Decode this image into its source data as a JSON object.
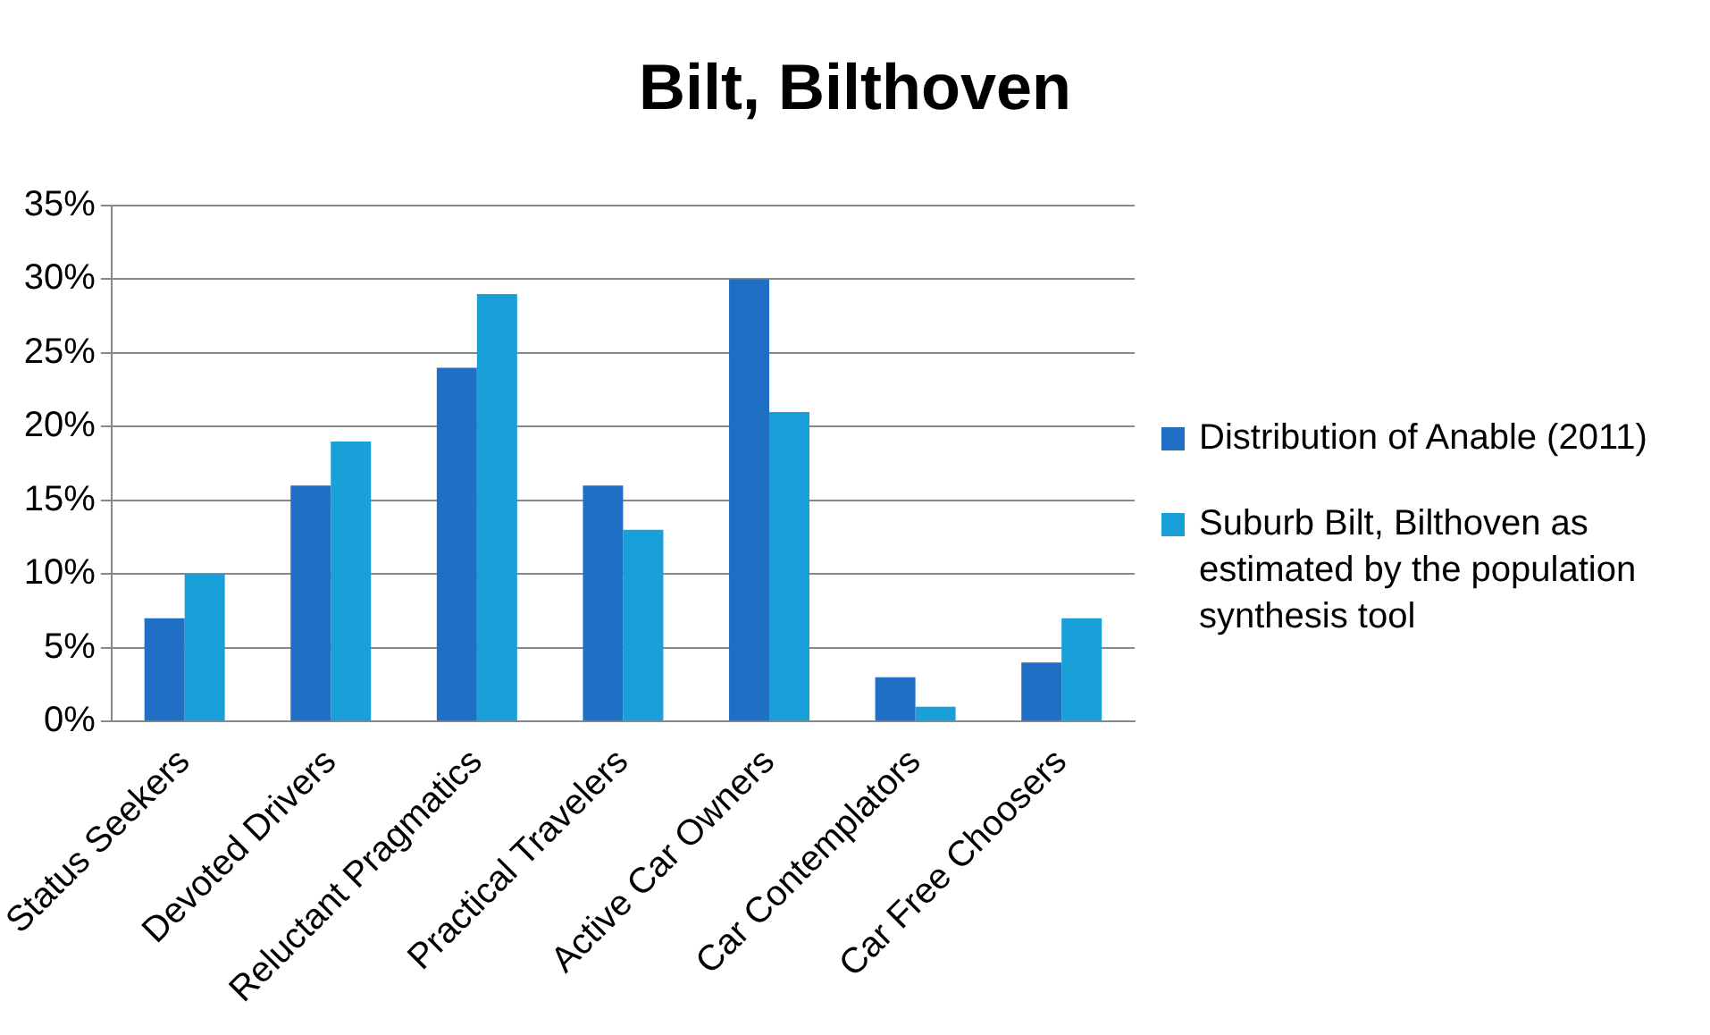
{
  "chart_data": {
    "type": "bar",
    "title": "Bilt, Bilthoven",
    "categories": [
      "Status Seekers",
      "Devoted Drivers",
      "Reluctant Pragmatics",
      "Practical Travelers",
      "Active Car Owners",
      "Car Contemplators",
      "Car Free Choosers"
    ],
    "series": [
      {
        "name": "Distribution of Anable (2011)",
        "color": "#1f6fc5",
        "values": [
          7,
          16,
          24,
          16,
          30,
          3,
          4
        ]
      },
      {
        "name": "Suburb Bilt, Bilthoven as estimated by the population synthesis tool",
        "color": "#1aa0d8",
        "values": [
          10,
          19,
          29,
          13,
          21,
          1,
          7
        ]
      }
    ],
    "ylim": [
      0,
      35
    ],
    "yticks": [
      {
        "value": 0,
        "label": "0%"
      },
      {
        "value": 5,
        "label": "5%"
      },
      {
        "value": 10,
        "label": "10%"
      },
      {
        "value": 15,
        "label": "15%"
      },
      {
        "value": 20,
        "label": "20%"
      },
      {
        "value": 25,
        "label": "25%"
      },
      {
        "value": 30,
        "label": "30%"
      },
      {
        "value": 35,
        "label": "35%"
      }
    ],
    "grid": "y",
    "legend": "right"
  }
}
